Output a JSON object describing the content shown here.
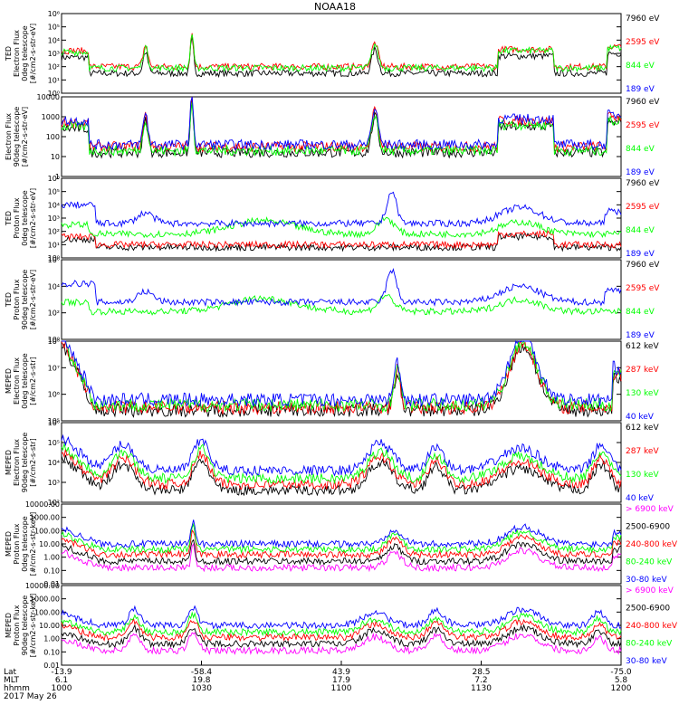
{
  "title": "NOAA18",
  "colors": {
    "black": "#000000",
    "red": "#ff0000",
    "green": "#00ff00",
    "blue": "#0000ff",
    "magenta": "#ff00ff"
  },
  "chart_data": [
    {
      "type": "line",
      "panel": 1,
      "ylabel": [
        "TED",
        "Electron Flux",
        "0deg telescope",
        "[#/cm2-s-str-eV]"
      ],
      "yscale": "log",
      "ylim": [
        1,
        1000000
      ],
      "yticks": [
        "10⁰",
        "10¹",
        "10²",
        "10³",
        "10⁴",
        "10⁵",
        "10⁶"
      ],
      "series": [
        {
          "name": "7960 eV",
          "color": "black",
          "shape": "electron_sparse",
          "base": 1.5
        },
        {
          "name": "2595 eV",
          "color": "red",
          "shape": "electron_sparse",
          "base": 2.0
        },
        {
          "name": "844 eV",
          "color": "green",
          "shape": "electron_sparse",
          "base": 1.9
        },
        {
          "name": "189 eV",
          "color": "blue",
          "shape": "none",
          "base": 1.0
        }
      ]
    },
    {
      "type": "line",
      "panel": 2,
      "ylabel": [
        "Electron Flux",
        "90deg telescope",
        "[#/cm2-s-str-eV]"
      ],
      "yscale": "log",
      "ylim": [
        1,
        10000
      ],
      "yticks": [
        "1",
        "10",
        "100",
        "1000",
        "10000"
      ],
      "series": [
        {
          "name": "7960 eV",
          "color": "black",
          "shape": "electron_sparse",
          "base": 1.2
        },
        {
          "name": "2595 eV",
          "color": "red",
          "shape": "electron_sparse",
          "base": 1.5
        },
        {
          "name": "844 eV",
          "color": "green",
          "shape": "electron_sparse",
          "base": 1.3
        },
        {
          "name": "189 eV",
          "color": "blue",
          "shape": "electron_sparse",
          "base": 1.6
        }
      ]
    },
    {
      "type": "line",
      "panel": 3,
      "ylabel": [
        "TED",
        "Proton Flux",
        "0deg telescope",
        "[#/cm2-s-str-eV]"
      ],
      "yscale": "log",
      "ylim": [
        1,
        1000000
      ],
      "yticks": [
        "10⁰",
        "10¹",
        "10²",
        "10³",
        "10⁴",
        "10⁵",
        "10⁶"
      ],
      "series": [
        {
          "name": "7960 eV",
          "color": "black",
          "shape": "proton_low",
          "base": 0.8
        },
        {
          "name": "2595 eV",
          "color": "red",
          "shape": "proton_low",
          "base": 1.0
        },
        {
          "name": "844 eV",
          "color": "green",
          "shape": "proton_mid",
          "base": 1.8
        },
        {
          "name": "189 eV",
          "color": "blue",
          "shape": "proton_high",
          "base": 2.6
        }
      ]
    },
    {
      "type": "line",
      "panel": 4,
      "ylabel": [
        "TED",
        "Proton Flux",
        "90deg telescope",
        "[#/cm2-s-str-eV]"
      ],
      "yscale": "log",
      "ylim": [
        1,
        1000000
      ],
      "yticks": [
        "10⁰",
        "10²",
        "10⁴",
        "10⁶"
      ],
      "series": [
        {
          "name": "7960 eV",
          "color": "black",
          "shape": "none",
          "base": 0.5
        },
        {
          "name": "2595 eV",
          "color": "red",
          "shape": "none",
          "base": 0.5
        },
        {
          "name": "844 eV",
          "color": "green",
          "shape": "proton_mid",
          "base": 2.1
        },
        {
          "name": "189 eV",
          "color": "blue",
          "shape": "proton_high",
          "base": 2.8
        }
      ]
    },
    {
      "type": "line",
      "panel": 5,
      "ylabel": [
        "MEPED",
        "Electron Flux",
        "0deg telescope",
        "[#/cm2-s-str]"
      ],
      "yscale": "log",
      "ylim": [
        100000,
        100000000
      ],
      "yticks": [
        "10⁵",
        "10⁶",
        "10⁷",
        "10⁸"
      ],
      "series": [
        {
          "name": "612 keV",
          "color": "black",
          "shape": "meped0",
          "base": 5.4
        },
        {
          "name": "287 keV",
          "color": "red",
          "shape": "meped0",
          "base": 5.5
        },
        {
          "name": "130 keV",
          "color": "green",
          "shape": "meped0",
          "base": 5.6
        },
        {
          "name": "40 keV",
          "color": "blue",
          "shape": "meped0",
          "base": 5.8
        }
      ]
    },
    {
      "type": "line",
      "panel": 6,
      "ylabel": [
        "MEPED",
        "Electron Flux",
        "90deg telescope",
        "[#/cm2-s-str]"
      ],
      "yscale": "log",
      "ylim": [
        100,
        1000000
      ],
      "yticks": [
        "10²",
        "10³",
        "10⁴",
        "10⁵",
        "10⁶"
      ],
      "series": [
        {
          "name": "612 keV",
          "color": "black",
          "shape": "meped90",
          "base": 2.6
        },
        {
          "name": "287 keV",
          "color": "red",
          "shape": "meped90",
          "base": 2.9
        },
        {
          "name": "130 keV",
          "color": "green",
          "shape": "meped90",
          "base": 3.2
        },
        {
          "name": "40 keV",
          "color": "blue",
          "shape": "meped90",
          "base": 3.6
        }
      ]
    },
    {
      "type": "line",
      "panel": 7,
      "ylabel": [
        "MEPED",
        "Proton Flux",
        "0deg telescope",
        "[#/cm2-s-str-keV]"
      ],
      "yscale": "log",
      "ylim": [
        0.01,
        10000
      ],
      "yticks": [
        "0.01",
        "0.10",
        "1.00",
        "10.00",
        "100.00",
        "1000.00",
        "10000.00"
      ],
      "series": [
        {
          "name": "> 6900 keV",
          "color": "magenta",
          "shape": "prot0",
          "base": -0.8
        },
        {
          "name": "2500-6900",
          "color": "black",
          "shape": "prot0",
          "base": -0.3
        },
        {
          "name": "240-800 keV",
          "color": "red",
          "shape": "prot0",
          "base": 0.2
        },
        {
          "name": "80-240 keV",
          "color": "green",
          "shape": "prot0",
          "base": 0.6
        },
        {
          "name": "30-80 keV",
          "color": "blue",
          "shape": "prot0",
          "base": 1.0
        }
      ]
    },
    {
      "type": "line",
      "panel": 8,
      "ylabel": [
        "MEPED",
        "Proton Flux",
        "90deg telescope",
        "[#/cm2-s-str-keV]"
      ],
      "yscale": "log",
      "ylim": [
        0.01,
        10000
      ],
      "yticks": [
        "0.01",
        "0.10",
        "1.00",
        "10.00",
        "100.00",
        "1000.00",
        "10000.00"
      ],
      "series": [
        {
          "name": "> 6900 keV",
          "color": "magenta",
          "shape": "prot90",
          "base": -0.9
        },
        {
          "name": "2500-6900",
          "color": "black",
          "shape": "prot90",
          "base": -0.4
        },
        {
          "name": "240-800 keV",
          "color": "red",
          "shape": "prot90",
          "base": 0.1
        },
        {
          "name": "80-240 keV",
          "color": "green",
          "shape": "prot90",
          "base": 0.5
        },
        {
          "name": "30-80 keV",
          "color": "blue",
          "shape": "prot90",
          "base": 1.0
        }
      ]
    }
  ],
  "footer": {
    "row_labels": [
      "Lat",
      "MLT",
      "hhmm",
      "2017 May 26"
    ],
    "columns": [
      {
        "lat": "-13.9",
        "mlt": "6.1",
        "hhmm": "1000"
      },
      {
        "lat": "-58.4",
        "mlt": "19.8",
        "hhmm": "1030"
      },
      {
        "lat": "43.9",
        "mlt": "17.9",
        "hhmm": "1100"
      },
      {
        "lat": "28.5",
        "mlt": "7.2",
        "hhmm": "1130"
      },
      {
        "lat": "-75.0",
        "mlt": "5.8",
        "hhmm": "1200"
      }
    ]
  }
}
